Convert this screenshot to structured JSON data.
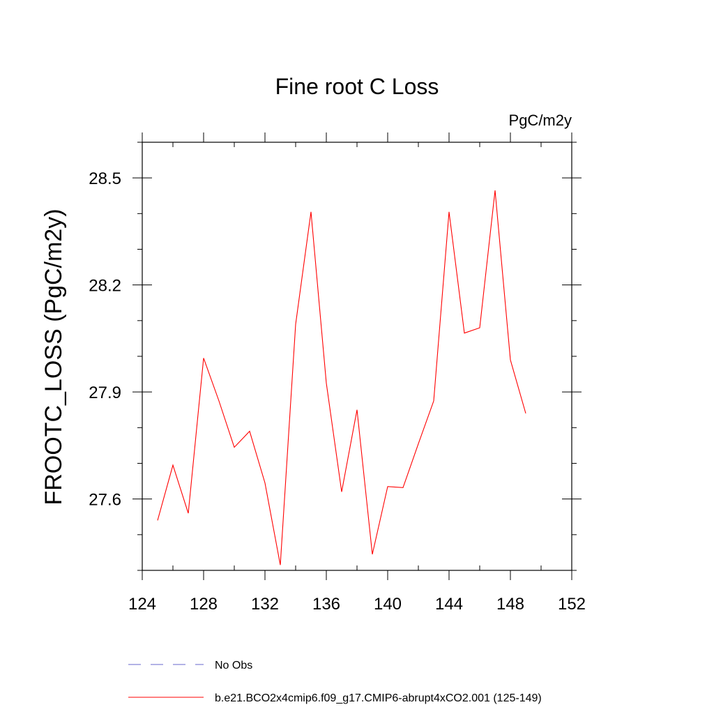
{
  "chart_data": {
    "type": "line",
    "title": "Fine root C Loss",
    "units_label": "PgC/m2y",
    "ylabel": "FROOTC_LOSS  (PgC/m2y)",
    "xlabel": "",
    "xlim": [
      124,
      152
    ],
    "ylim": [
      27.4,
      28.6
    ],
    "x_ticks": [
      124,
      128,
      132,
      136,
      140,
      144,
      148,
      152
    ],
    "x_tick_labels": [
      "124",
      "128",
      "132",
      "136",
      "140",
      "144",
      "148",
      "152"
    ],
    "y_ticks": [
      27.6,
      27.9,
      28.2,
      28.5
    ],
    "y_tick_labels": [
      "27.6",
      "27.9",
      "28.2",
      "28.5"
    ],
    "grid": false,
    "legend_position": "bottom",
    "series": [
      {
        "name": "b.e21.BCO2x4cmip6.f09_g17.CMIP6-abrupt4xCO2.001 (125-149)",
        "color": "#ff0000",
        "style": "solid",
        "x": [
          125,
          126,
          127,
          128,
          129,
          130,
          131,
          132,
          133,
          134,
          135,
          136,
          137,
          138,
          139,
          140,
          141,
          142,
          143,
          144,
          145,
          146,
          147,
          148,
          149
        ],
        "y": [
          27.54,
          27.695,
          27.56,
          27.995,
          27.875,
          27.745,
          27.79,
          27.645,
          27.415,
          28.09,
          28.405,
          27.925,
          27.62,
          27.85,
          27.445,
          27.635,
          27.632,
          27.755,
          27.875,
          28.405,
          28.065,
          28.08,
          28.465,
          27.99,
          27.84
        ]
      }
    ],
    "legend": [
      {
        "label": "No Obs",
        "color": "#6666cc",
        "style": "dashed"
      },
      {
        "label": "b.e21.BCO2x4cmip6.f09_g17.CMIP6-abrupt4xCO2.001 (125-149)",
        "color": "#ff0000",
        "style": "solid"
      }
    ]
  }
}
